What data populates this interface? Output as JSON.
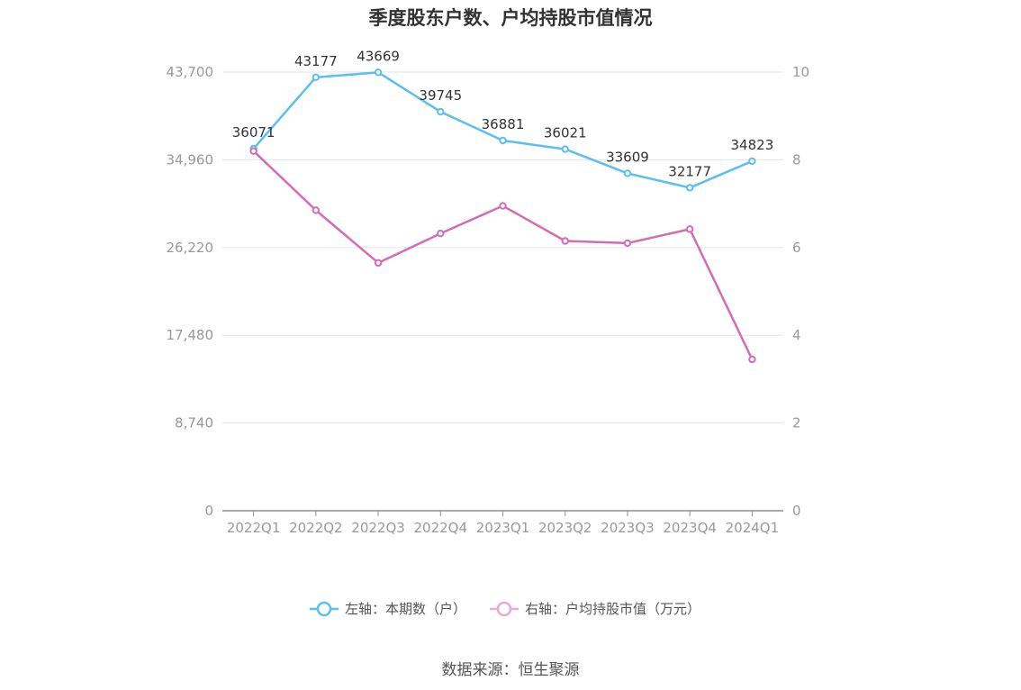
{
  "title": "季度股东户数、户均持股市值情况",
  "source": "数据来源：恒生聚源",
  "colors": {
    "left_series": "#5bbff0",
    "right_series": "#d46cb4",
    "grid": "#e3e6ef",
    "axis": "#8a8fa3"
  },
  "chart_data": {
    "type": "line",
    "title": "季度股东户数、户均持股市值情况",
    "categories": [
      "2022Q1",
      "2022Q2",
      "2022Q3",
      "2022Q4",
      "2023Q1",
      "2023Q2",
      "2023Q3",
      "2023Q4",
      "2024Q1"
    ],
    "left_axis": {
      "ticks": [
        "0",
        "8,740",
        "17,480",
        "26,220",
        "34,960",
        "43,700"
      ],
      "ylim": [
        0,
        43700
      ]
    },
    "right_axis": {
      "ticks": [
        "0",
        "2",
        "4",
        "6",
        "8",
        "10"
      ],
      "ylim": [
        0,
        10
      ]
    },
    "grid": true,
    "legend_position": "bottom-center",
    "series": [
      {
        "name": "左轴：本期数（户）",
        "axis": "left",
        "values": [
          36071,
          43177,
          43669,
          39745,
          36881,
          36021,
          33609,
          32177,
          34823
        ],
        "labels": [
          "36071",
          "43177",
          "43669",
          "39745",
          "36881",
          "36021",
          "33609",
          "32177",
          "34823"
        ]
      },
      {
        "name": "右轴：户均持股市值（万元）",
        "axis": "right",
        "values": [
          8.2,
          6.85,
          5.65,
          6.32,
          6.95,
          6.15,
          6.1,
          6.42,
          3.45
        ]
      }
    ]
  }
}
